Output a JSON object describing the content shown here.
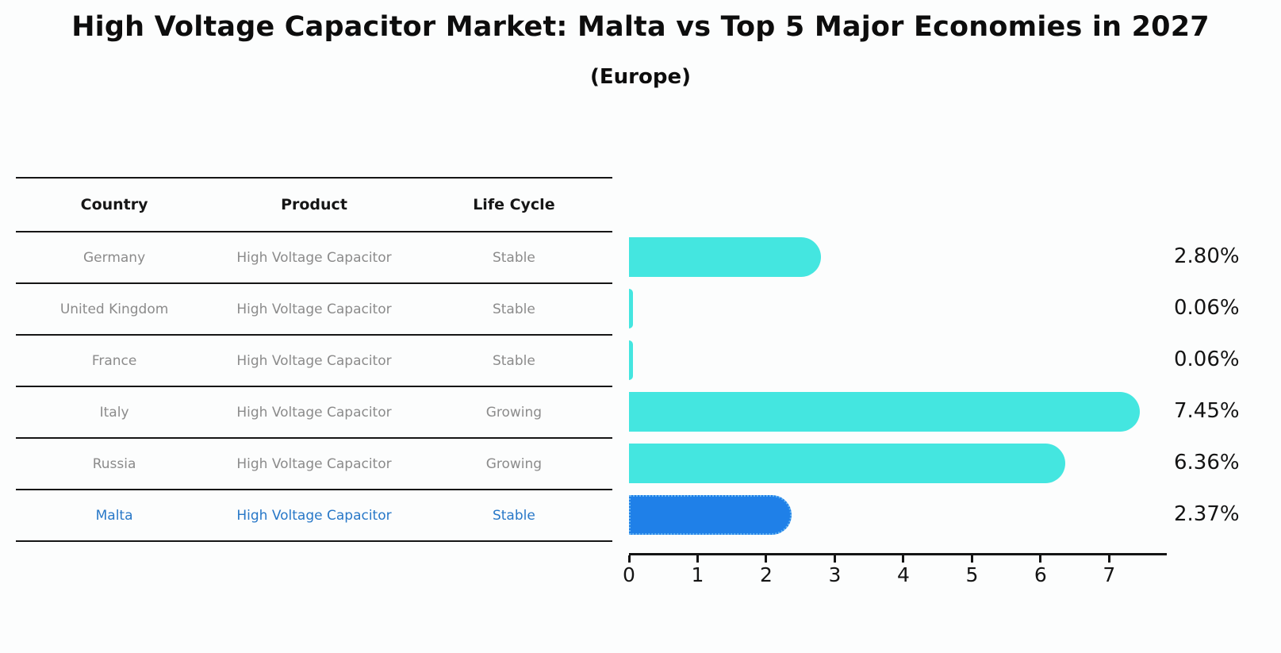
{
  "title": "High Voltage Capacitor Market: Malta vs Top 5 Major Economies in 2027",
  "subtitle": "(Europe)",
  "colors": {
    "bg": "#fcfdfd",
    "bar_default": "#44e6e0",
    "bar_highlight": "#1f80e8",
    "bar_highlight_border": "#66b5f2",
    "highlight_text": "#2878c8",
    "table_text": "#8b8b8b",
    "axis": "#141414"
  },
  "table": {
    "headers": [
      "Country",
      "Product",
      "Life Cycle"
    ],
    "rows": [
      {
        "country": "Germany",
        "product": "High Voltage Capacitor",
        "life_cycle": "Stable",
        "highlight": false
      },
      {
        "country": "United Kingdom",
        "product": "High Voltage Capacitor",
        "life_cycle": "Stable",
        "highlight": false
      },
      {
        "country": "France",
        "product": "High Voltage Capacitor",
        "life_cycle": "Stable",
        "highlight": false
      },
      {
        "country": "Italy",
        "product": "High Voltage Capacitor",
        "life_cycle": "Growing",
        "highlight": false
      },
      {
        "country": "Russia",
        "product": "High Voltage Capacitor",
        "life_cycle": "Growing",
        "highlight": false
      },
      {
        "country": "Malta",
        "product": "High Voltage Capacitor",
        "life_cycle": "Stable",
        "highlight": true
      }
    ]
  },
  "chart_data": {
    "type": "bar",
    "orientation": "horizontal",
    "title": "High Voltage Capacitor Market: Malta vs Top 5 Major Economies in 2027 (Europe)",
    "categories": [
      "Germany",
      "United Kingdom",
      "France",
      "Italy",
      "Russia",
      "Malta"
    ],
    "values": [
      2.8,
      0.06,
      0.06,
      7.45,
      6.36,
      2.37
    ],
    "value_labels": [
      "2.80%",
      "0.06%",
      "0.06%",
      "7.45%",
      "6.36%",
      "2.37%"
    ],
    "highlight_index": 5,
    "x_ticks": [
      0,
      1,
      2,
      3,
      4,
      5,
      6,
      7
    ],
    "xlim": [
      0,
      7.84
    ],
    "grid": false,
    "legend": false
  }
}
